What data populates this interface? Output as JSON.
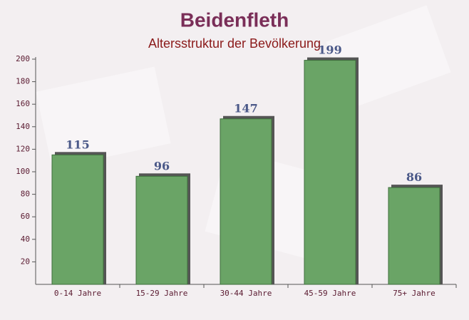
{
  "chart_data": {
    "type": "bar",
    "title": "Beidenfleth",
    "subtitle": "Altersstruktur der Bevölkerung",
    "categories": [
      "0-14 Jahre",
      "15-29 Jahre",
      "30-44 Jahre",
      "45-59 Jahre",
      "75+ Jahre"
    ],
    "values": [
      115,
      96,
      147,
      199,
      86
    ],
    "color": "#6aa466",
    "ylim": [
      0,
      200
    ],
    "yticks": [
      20,
      40,
      60,
      80,
      100,
      120,
      140,
      160,
      180,
      200
    ]
  }
}
